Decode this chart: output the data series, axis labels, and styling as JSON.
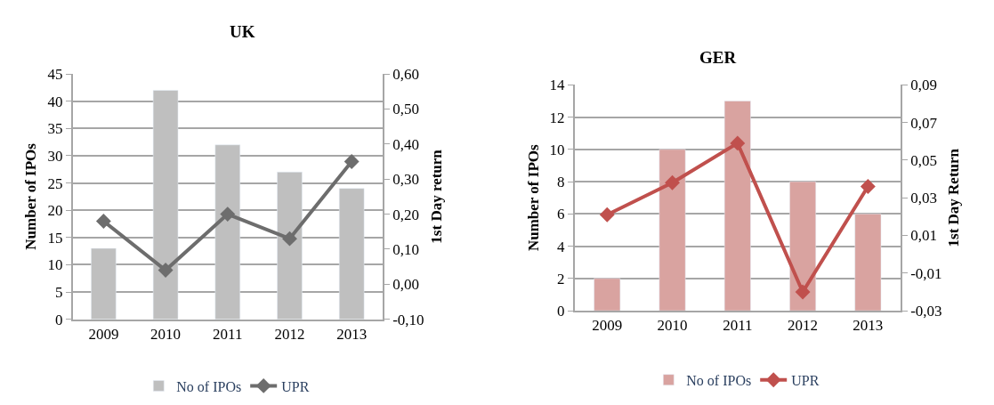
{
  "chart_data": [
    {
      "type": "bar",
      "title": "UK",
      "ylabel": "Number of IPOs",
      "y2label": "1st Day return",
      "categories": [
        "2009",
        "2010",
        "2011",
        "2012",
        "2013"
      ],
      "series": [
        {
          "name": "No of IPOs",
          "color": "#bfbfbf",
          "values": [
            13,
            42,
            32,
            27,
            24
          ]
        },
        {
          "name": "UPR",
          "type": "line",
          "axis": "y2",
          "color": "#6d6d6d",
          "values": [
            0.18,
            0.04,
            0.2,
            0.13,
            0.35
          ]
        }
      ],
      "ylim": [
        0,
        45
      ],
      "yticks": [
        0,
        5,
        10,
        15,
        20,
        25,
        30,
        35,
        40,
        45
      ],
      "y2lim": [
        -0.1,
        0.6
      ],
      "y2ticks": [
        {
          "value": -0.1,
          "label": "-0,10"
        },
        {
          "value": 0,
          "label": "0,00"
        },
        {
          "value": 0.1,
          "label": "0,10"
        },
        {
          "value": 0.2,
          "label": "0,20"
        },
        {
          "value": 0.3,
          "label": "0,30"
        },
        {
          "value": 0.4,
          "label": "0,40"
        },
        {
          "value": 0.5,
          "label": "0,50"
        },
        {
          "value": 0.6,
          "label": "0,60"
        }
      ],
      "grid": "y",
      "legend": "bottom",
      "marker": "diamond"
    },
    {
      "type": "bar",
      "title": "GER",
      "ylabel": "Number of IPOs",
      "y2label": "1st Day Return",
      "categories": [
        "2009",
        "2010",
        "2011",
        "2012",
        "2013"
      ],
      "series": [
        {
          "name": "No of IPOs",
          "color": "#d9a3a0",
          "values": [
            2,
            10,
            13,
            8,
            6
          ]
        },
        {
          "name": "UPR",
          "type": "line",
          "axis": "y2",
          "color": "#c0504d",
          "values": [
            0.021,
            0.038,
            0.059,
            -0.02,
            0.036
          ]
        }
      ],
      "ylim": [
        0,
        14
      ],
      "yticks": [
        0,
        2,
        4,
        6,
        8,
        10,
        12,
        14
      ],
      "y2lim": [
        -0.03,
        0.09
      ],
      "y2ticks": [
        {
          "value": -0.03,
          "label": "-0,03"
        },
        {
          "value": -0.01,
          "label": "-0,01"
        },
        {
          "value": 0.01,
          "label": "0,01"
        },
        {
          "value": 0.03,
          "label": "0,03"
        },
        {
          "value": 0.05,
          "label": "0,05"
        },
        {
          "value": 0.07,
          "label": "0,07"
        },
        {
          "value": 0.09,
          "label": "0,09"
        }
      ],
      "grid": "y",
      "legend": "bottom",
      "marker": "diamond"
    }
  ]
}
